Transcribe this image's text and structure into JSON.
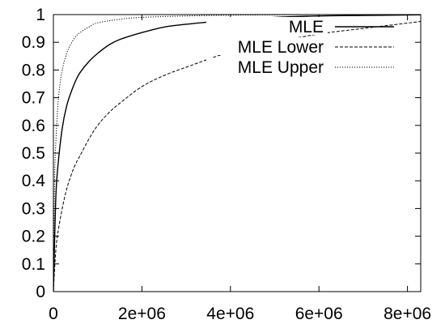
{
  "chart_data": {
    "type": "line",
    "title": "",
    "xlabel": "",
    "ylabel": "",
    "xlim": [
      0,
      8300000
    ],
    "ylim": [
      0,
      1
    ],
    "x_ticks": [
      {
        "value": 0,
        "label": "0"
      },
      {
        "value": 2000000,
        "label": "2e+06"
      },
      {
        "value": 4000000,
        "label": "4e+06"
      },
      {
        "value": 6000000,
        "label": "6e+06"
      },
      {
        "value": 8000000,
        "label": "8e+06"
      }
    ],
    "y_ticks": [
      {
        "value": 0,
        "label": "0"
      },
      {
        "value": 0.1,
        "label": "0.1"
      },
      {
        "value": 0.2,
        "label": "0.2"
      },
      {
        "value": 0.3,
        "label": "0.3"
      },
      {
        "value": 0.4,
        "label": "0.4"
      },
      {
        "value": 0.5,
        "label": "0.5"
      },
      {
        "value": 0.6,
        "label": "0.6"
      },
      {
        "value": 0.7,
        "label": "0.7"
      },
      {
        "value": 0.8,
        "label": "0.8"
      },
      {
        "value": 0.9,
        "label": "0.9"
      },
      {
        "value": 1,
        "label": "1"
      }
    ],
    "grid": false,
    "legend_position": "top-right",
    "series": [
      {
        "name": "MLE",
        "style": "solid",
        "color": "#000000",
        "x": [
          0,
          50000,
          100000,
          200000,
          300000,
          400000,
          500000,
          600000,
          800000,
          1000000,
          1250000,
          1500000,
          2000000,
          2500000,
          3000000,
          4000000,
          5000000,
          6000000,
          7000000,
          8300000
        ],
        "y": [
          0,
          0.32,
          0.45,
          0.59,
          0.67,
          0.72,
          0.76,
          0.79,
          0.83,
          0.86,
          0.89,
          0.91,
          0.935,
          0.955,
          0.965,
          0.98,
          0.99,
          0.995,
          0.997,
          0.999
        ]
      },
      {
        "name": "MLE Lower",
        "style": "dashed",
        "color": "#000000",
        "x": [
          0,
          50000,
          100000,
          200000,
          300000,
          400000,
          500000,
          600000,
          800000,
          1000000,
          1250000,
          1500000,
          2000000,
          2500000,
          3000000,
          4000000,
          5000000,
          6000000,
          7000000,
          8300000
        ],
        "y": [
          0,
          0.14,
          0.21,
          0.3,
          0.37,
          0.42,
          0.46,
          0.49,
          0.55,
          0.6,
          0.645,
          0.68,
          0.74,
          0.78,
          0.81,
          0.865,
          0.9,
          0.93,
          0.95,
          0.975
        ]
      },
      {
        "name": "MLE Upper",
        "style": "dotted",
        "color": "#000000",
        "x": [
          0,
          25000,
          50000,
          100000,
          150000,
          200000,
          300000,
          400000,
          500000,
          600000,
          800000,
          1000000,
          1500000,
          2000000,
          3000000,
          4000000,
          5000000,
          6000000,
          8300000
        ],
        "y": [
          0,
          0.38,
          0.52,
          0.67,
          0.75,
          0.8,
          0.86,
          0.895,
          0.92,
          0.935,
          0.955,
          0.97,
          0.983,
          0.99,
          0.995,
          0.998,
          0.999,
          1.0,
          1.0
        ]
      }
    ]
  }
}
